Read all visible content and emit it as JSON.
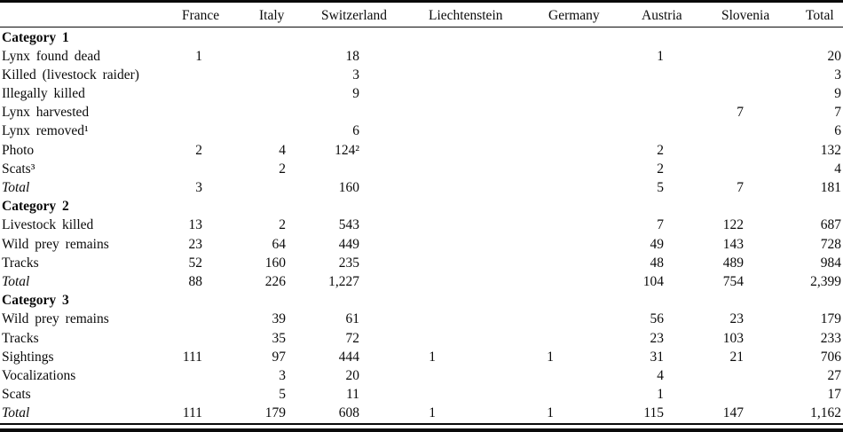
{
  "colors": {
    "background": "#ffffff",
    "text": "#0a0a0a",
    "rule": "#0a0a0a"
  },
  "table": {
    "columns": [
      "France",
      "Italy",
      "Switzerland",
      "Liechtenstein",
      "Germany",
      "Austria",
      "Slovenia",
      "Total"
    ],
    "rows": [
      {
        "type": "category",
        "label": "Category 1",
        "cells": [
          "",
          "",
          "",
          "",
          "",
          "",
          "",
          ""
        ]
      },
      {
        "type": "data",
        "label": "Lynx found dead",
        "cells": [
          "1",
          "",
          "18",
          "",
          "",
          "1",
          "",
          "20"
        ]
      },
      {
        "type": "data",
        "label": "Killed (livestock raider)",
        "cells": [
          "",
          "",
          "3",
          "",
          "",
          "",
          "",
          "3"
        ]
      },
      {
        "type": "data",
        "label": "Illegally killed",
        "cells": [
          "",
          "",
          "9",
          "",
          "",
          "",
          "",
          "9"
        ]
      },
      {
        "type": "data",
        "label": "Lynx harvested",
        "cells": [
          "",
          "",
          "",
          "",
          "",
          "",
          "7",
          "7"
        ]
      },
      {
        "type": "data",
        "label": "Lynx removed¹",
        "cells": [
          "",
          "",
          "6",
          "",
          "",
          "",
          "",
          "6"
        ]
      },
      {
        "type": "data",
        "label": "Photo",
        "cells": [
          "2",
          "4",
          "124²",
          "",
          "",
          "2",
          "",
          "132"
        ]
      },
      {
        "type": "data",
        "label": "Scats³",
        "cells": [
          "",
          "2",
          "",
          "",
          "",
          "2",
          "",
          "4"
        ]
      },
      {
        "type": "total",
        "label": "Total",
        "cells": [
          "3",
          "",
          "160",
          "",
          "",
          "5",
          "7",
          "181"
        ]
      },
      {
        "type": "category",
        "label": "Category 2",
        "cells": [
          "",
          "",
          "",
          "",
          "",
          "",
          "",
          ""
        ]
      },
      {
        "type": "data",
        "label": "Livestock killed",
        "cells": [
          "13",
          "2",
          "543",
          "",
          "",
          "7",
          "122",
          "687"
        ]
      },
      {
        "type": "data",
        "label": "Wild prey remains",
        "cells": [
          "23",
          "64",
          "449",
          "",
          "",
          "49",
          "143",
          "728"
        ]
      },
      {
        "type": "data",
        "label": "Tracks",
        "cells": [
          "52",
          "160",
          "235",
          "",
          "",
          "48",
          "489",
          "984"
        ]
      },
      {
        "type": "total",
        "label": "Total",
        "cells": [
          "88",
          "226",
          "1,227",
          "",
          "",
          "104",
          "754",
          "2,399"
        ]
      },
      {
        "type": "category",
        "label": "Category 3",
        "cells": [
          "",
          "",
          "",
          "",
          "",
          "",
          "",
          ""
        ]
      },
      {
        "type": "data",
        "label": "Wild prey remains",
        "cells": [
          "",
          "39",
          "61",
          "",
          "",
          "56",
          "23",
          "179"
        ]
      },
      {
        "type": "data",
        "label": "Tracks",
        "cells": [
          "",
          "35",
          "72",
          "",
          "",
          "23",
          "103",
          "233"
        ]
      },
      {
        "type": "data",
        "label": "Sightings",
        "cells": [
          "111",
          "97",
          "444",
          "1",
          "1",
          "31",
          "21",
          "706"
        ]
      },
      {
        "type": "data",
        "label": "Vocalizations",
        "cells": [
          "",
          "3",
          "20",
          "",
          "",
          "4",
          "",
          "27"
        ]
      },
      {
        "type": "data",
        "label": "Scats",
        "cells": [
          "",
          "5",
          "11",
          "",
          "",
          "1",
          "",
          "17"
        ]
      },
      {
        "type": "total",
        "label": "Total",
        "cells": [
          "111",
          "179",
          "608",
          "1",
          "1",
          "115",
          "147",
          "1,162"
        ]
      }
    ]
  }
}
